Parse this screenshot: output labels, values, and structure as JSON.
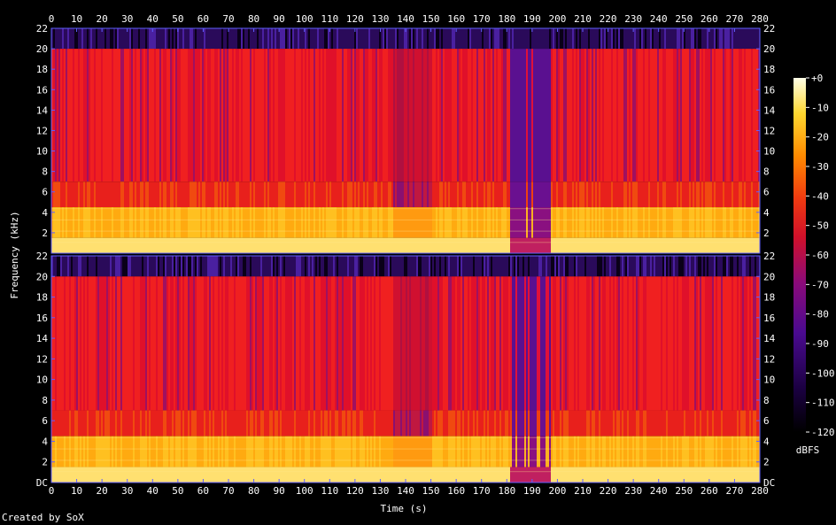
{
  "chart_data": {
    "type": "heatmap",
    "subtype": "spectrogram",
    "xlabel": "Time (s)",
    "ylabel": "Frequency (kHz)",
    "colorbar_label": "dBFS",
    "x_range": [
      0,
      280
    ],
    "x_ticks": [
      0,
      10,
      20,
      30,
      40,
      50,
      60,
      70,
      80,
      90,
      100,
      110,
      120,
      130,
      140,
      150,
      160,
      170,
      180,
      190,
      200,
      210,
      220,
      230,
      240,
      250,
      260,
      270,
      280
    ],
    "y_range_khz": [
      0,
      22
    ],
    "y_ticks": [
      "DC",
      "2",
      "4",
      "6",
      "8",
      "10",
      "12",
      "14",
      "16",
      "18",
      "20",
      "22"
    ],
    "colorbar_ticks": [
      "+0",
      "-10",
      "-20",
      "-30",
      "-40",
      "-50",
      "-60",
      "-70",
      "-80",
      "-90",
      "-100",
      "-110",
      "-120"
    ],
    "colorbar_range_db": [
      -120,
      0
    ],
    "channels": 2,
    "lowpass_cutoff_khz": 20,
    "dense_segments_s": [
      [
        1,
        110
      ],
      [
        112,
        135
      ],
      [
        150,
        180
      ],
      [
        197,
        246
      ],
      [
        246,
        278
      ]
    ],
    "quiet_segments_s": [
      [
        135,
        150
      ],
      [
        181,
        197
      ]
    ],
    "colors": {
      "background": "#000000",
      "axis": "#6060ff",
      "text": "#ffffff"
    }
  },
  "footer": {
    "creator": "Created by SoX"
  }
}
